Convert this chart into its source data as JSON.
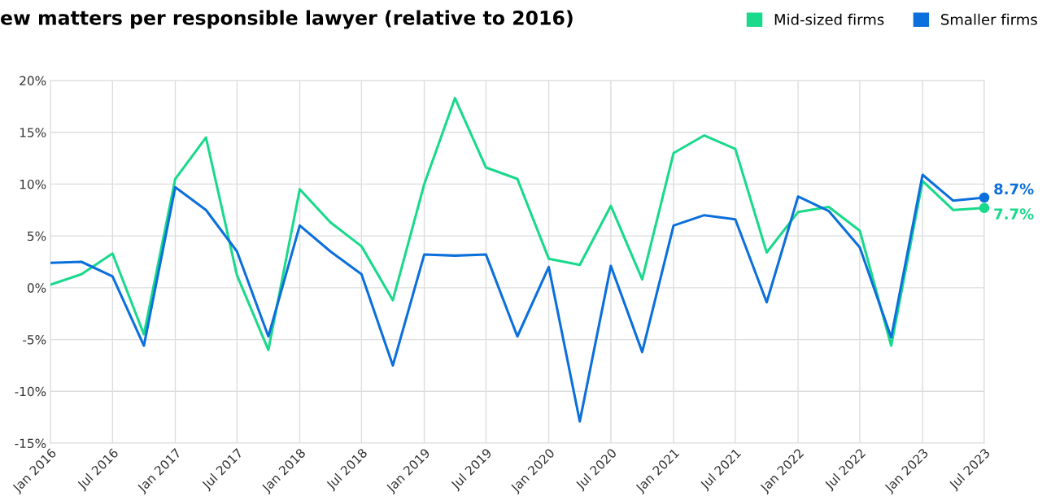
{
  "chart_data": {
    "type": "line",
    "title": "ew matters per responsible lawyer (relative to 2016)",
    "x": [
      "2016-01",
      "2016-04",
      "2016-07",
      "2016-10",
      "2017-01",
      "2017-04",
      "2017-07",
      "2017-10",
      "2018-01",
      "2018-04",
      "2018-07",
      "2018-10",
      "2019-01",
      "2019-04",
      "2019-07",
      "2019-10",
      "2020-01",
      "2020-04",
      "2020-07",
      "2020-10",
      "2021-01",
      "2021-04",
      "2021-07",
      "2021-10",
      "2022-01",
      "2022-04",
      "2022-07",
      "2022-10",
      "2023-01",
      "2023-04",
      "2023-07"
    ],
    "series": [
      {
        "name": "Mid-sized firms",
        "color": "#19d98b",
        "values": [
          0.3,
          1.3,
          3.3,
          -4.5,
          10.5,
          14.5,
          1.2,
          -6.0,
          9.5,
          6.3,
          4.0,
          -1.2,
          10.0,
          18.3,
          11.6,
          10.5,
          2.8,
          2.2,
          7.9,
          0.8,
          13.0,
          14.7,
          13.4,
          3.4,
          7.3,
          7.8,
          5.5,
          -5.6,
          10.3,
          7.5,
          7.7
        ]
      },
      {
        "name": "Smaller firms",
        "color": "#0b6fdc",
        "values": [
          2.4,
          2.5,
          1.1,
          -5.6,
          9.7,
          7.5,
          3.5,
          -4.7,
          6.0,
          3.5,
          1.3,
          -7.5,
          3.2,
          3.1,
          3.2,
          -4.7,
          2.0,
          -12.9,
          2.1,
          -6.2,
          6.0,
          7.0,
          6.6,
          -1.4,
          8.8,
          7.4,
          3.9,
          -4.8,
          10.9,
          8.4,
          8.7
        ]
      }
    ],
    "annotations": [
      {
        "text": "7.7%",
        "x": "2023-07",
        "y": 7.7
      },
      {
        "text": "8.7%",
        "x": "2023-07",
        "y": 8.7
      }
    ],
    "xlim": [
      "2016-01",
      "2023-07"
    ],
    "xticks": [
      {
        "value": "2016-01",
        "label": "Jan 2016"
      },
      {
        "value": "2016-07",
        "label": "Jul 2016"
      },
      {
        "value": "2017-01",
        "label": "Jan 2017"
      },
      {
        "value": "2017-07",
        "label": "Jul 2017"
      },
      {
        "value": "2018-01",
        "label": "Jan 2018"
      },
      {
        "value": "2018-07",
        "label": "Jul 2018"
      },
      {
        "value": "2019-01",
        "label": "Jan 2019"
      },
      {
        "value": "2019-07",
        "label": "Jul 2019"
      },
      {
        "value": "2020-01",
        "label": "Jan 2020"
      },
      {
        "value": "2020-07",
        "label": "Jul 2020"
      },
      {
        "value": "2021-01",
        "label": "Jan 2021"
      },
      {
        "value": "2021-07",
        "label": "Jul 2021"
      },
      {
        "value": "2022-01",
        "label": "Jan 2022"
      },
      {
        "value": "2022-07",
        "label": "Jul 2022"
      },
      {
        "value": "2023-01",
        "label": "Jan 2023"
      },
      {
        "value": "2023-07",
        "label": "Jul 2023"
      }
    ],
    "ylim": [
      -15,
      20
    ],
    "yticks": [
      {
        "value": -15,
        "label": "-15%"
      },
      {
        "value": -10,
        "label": "-10%"
      },
      {
        "value": -5,
        "label": "-5%"
      },
      {
        "value": 0,
        "label": "0%"
      },
      {
        "value": 5,
        "label": "5%"
      },
      {
        "value": 10,
        "label": "10%"
      },
      {
        "value": 15,
        "label": "15%"
      },
      {
        "value": 20,
        "label": "20%"
      }
    ],
    "grid": true,
    "legend": "top right",
    "marker": "none",
    "line_style": "solid"
  }
}
